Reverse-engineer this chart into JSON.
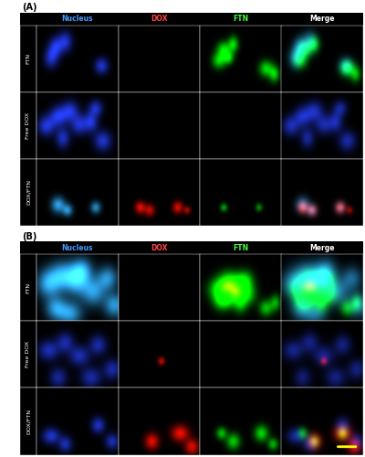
{
  "panel_A_label": "(A)",
  "panel_B_label": "(B)",
  "col_headers": [
    "Nucleus",
    "DOX",
    "FTN",
    "Merge"
  ],
  "row_labels_A": [
    "FTN",
    "Free DOX",
    "DOX/FTN"
  ],
  "row_labels_B": [
    "FTN",
    "Free DOX",
    "DOX/FTN"
  ],
  "col_header_colors": [
    "#4499ff",
    "#ff4444",
    "#44ff44",
    "#ffffff"
  ],
  "row_label_color": "#ffffff",
  "background": "#000000",
  "outer_bg": "#ffffff",
  "scalebar_color": "#ffff00",
  "figure_bg": "#ffffff",
  "panel_border_color": "#888888",
  "n_cols": 4,
  "n_rows": 3
}
